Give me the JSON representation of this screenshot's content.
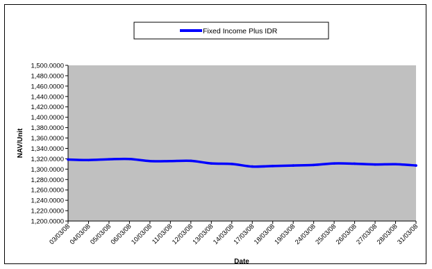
{
  "chart_data": {
    "type": "line",
    "title": "",
    "xlabel": "Date",
    "ylabel": "NAV/Unit",
    "ylim": [
      1200,
      1500
    ],
    "y_tick_step": 20,
    "y_tick_labels": [
      "1,200.0000",
      "1,220.0000",
      "1,240.0000",
      "1,260.0000",
      "1,280.0000",
      "1,300.0000",
      "1,320.0000",
      "1,340.0000",
      "1,360.0000",
      "1,380.0000",
      "1,400.0000",
      "1,420.0000",
      "1,440.0000",
      "1,460.0000",
      "1,480.0000",
      "1,500.0000"
    ],
    "categories": [
      "03/03/08",
      "04/03/08",
      "05/03/08",
      "06/03/08",
      "10/03/08",
      "11/03/08",
      "12/03/08",
      "13/03/08",
      "14/03/08",
      "17/03/08",
      "18/03/08",
      "19/03/08",
      "24/03/08",
      "25/03/08",
      "26/03/08",
      "27/03/08",
      "28/03/08",
      "31/03/08"
    ],
    "series": [
      {
        "name": "Fixed Income Plus IDR",
        "color": "#0000ff",
        "values": [
          1318.5,
          1317.5,
          1319.0,
          1319.5,
          1315.5,
          1315.5,
          1316.0,
          1311.0,
          1310.0,
          1305.0,
          1306.0,
          1307.0,
          1308.0,
          1311.0,
          1310.5,
          1309.0,
          1309.5,
          1307.0
        ]
      }
    ],
    "legend_position": "top",
    "plot_background": "#c0c0c0",
    "grid": false
  }
}
